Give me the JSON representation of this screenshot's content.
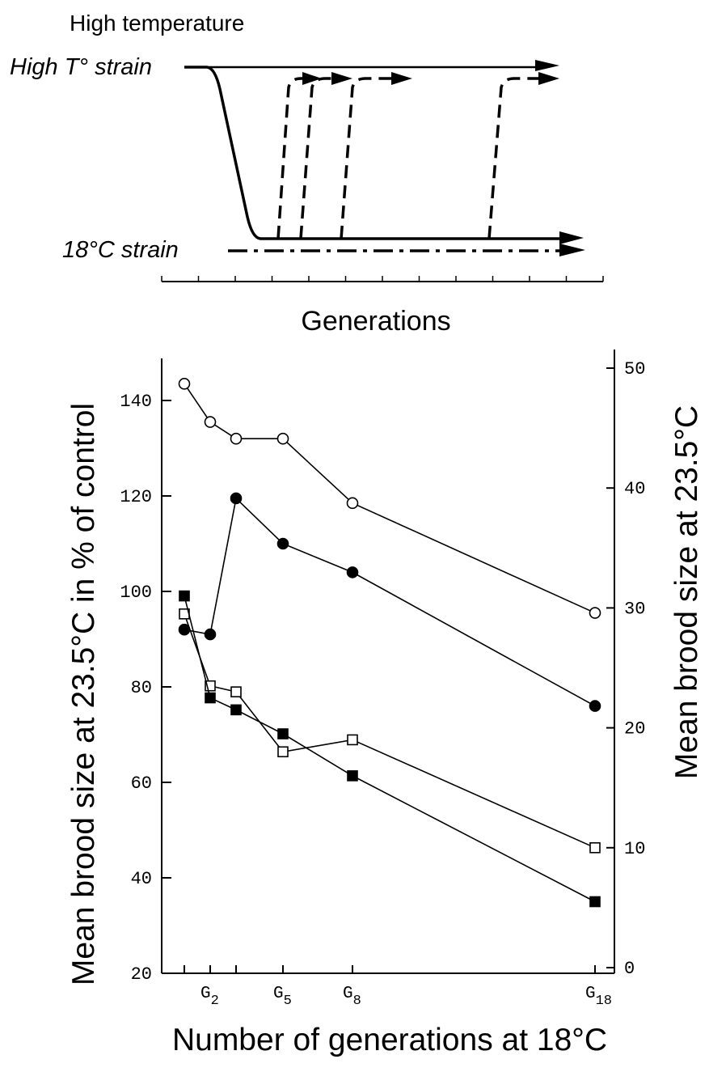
{
  "top_diagram": {
    "title": "High temperature",
    "high_strain_label": "High T° strain",
    "low_strain_label": "18°C strain",
    "xlabel": "Generations"
  },
  "chart_data": {
    "type": "line",
    "xlabel": "Number of generations at 18°C",
    "ylabel_left": "Mean brood size at 23.5°C in % of control",
    "ylabel_right": "Mean brood size at 23.5°C",
    "ylim_left": [
      20,
      150
    ],
    "ylim_right": [
      0,
      52
    ],
    "left_ticks": [
      "20",
      "40",
      "60",
      "80",
      "100",
      "120",
      "140"
    ],
    "right_ticks": [
      "0",
      "10",
      "20",
      "30",
      "40",
      "50"
    ],
    "x_ticks": [
      {
        "x": 2,
        "label": "G",
        "sub": "2"
      },
      {
        "x": 5,
        "label": "G",
        "sub": "5"
      },
      {
        "x": 8,
        "label": "G",
        "sub": "8"
      },
      {
        "x": 18,
        "label": "G",
        "sub": "18"
      }
    ],
    "series": [
      {
        "marker": "open-circle",
        "axis": "left",
        "x": [
          1,
          2,
          3,
          5,
          8,
          18
        ],
        "values": [
          143.5,
          135.5,
          132,
          132,
          118.5,
          95.5
        ]
      },
      {
        "marker": "filled-circle",
        "axis": "left",
        "x": [
          1,
          2,
          3,
          5,
          8,
          18
        ],
        "values": [
          92,
          91,
          119.5,
          110,
          104,
          76
        ]
      },
      {
        "marker": "open-square",
        "axis": "right",
        "x": [
          1,
          2,
          3,
          5,
          8,
          18
        ],
        "values": [
          29.5,
          23.5,
          23,
          18,
          19,
          10
        ]
      },
      {
        "marker": "filled-square",
        "axis": "right",
        "x": [
          1,
          2,
          3,
          5,
          8,
          18
        ],
        "values": [
          31,
          22.5,
          21.5,
          19.5,
          16,
          5.5
        ]
      }
    ]
  }
}
